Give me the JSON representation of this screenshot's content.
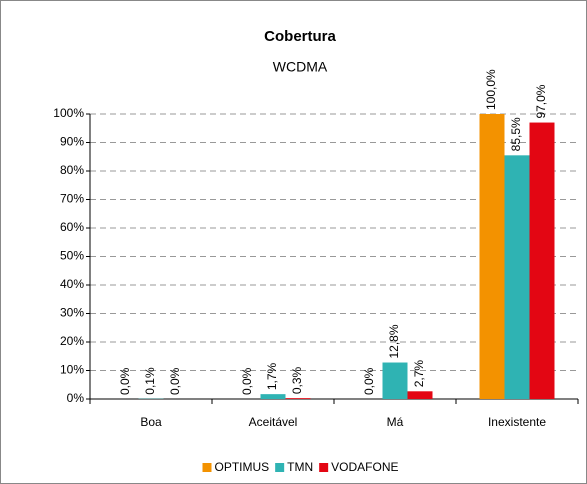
{
  "chart_data": {
    "type": "bar",
    "title": "Cobertura",
    "subtitle": "WCDMA",
    "categories": [
      "Boa",
      "Aceitável",
      "Má",
      "Inexistente"
    ],
    "series": [
      {
        "name": "OPTIMUS",
        "color": "#f39200",
        "values": [
          0,
          0,
          0,
          100
        ],
        "value_labels": [
          "0,0%",
          "0,0%",
          "0,0%",
          "100,0%"
        ]
      },
      {
        "name": "TMN",
        "color": "#2fb3b3",
        "values": [
          0.1,
          1.7,
          12.8,
          85.5
        ],
        "value_labels": [
          "0,1%",
          "1,7%",
          "12,8%",
          "85,5%"
        ]
      },
      {
        "name": "VODAFONE",
        "color": "#e30613",
        "values": [
          0,
          0.3,
          2.7,
          97
        ],
        "value_labels": [
          "0,0%",
          "0,3%",
          "2,7%",
          "97,0%"
        ]
      }
    ],
    "ylim": [
      0,
      100
    ],
    "yticks": [
      {
        "value": 0,
        "label": "0%"
      },
      {
        "value": 10,
        "label": "10%"
      },
      {
        "value": 20,
        "label": "20%"
      },
      {
        "value": 30,
        "label": "30%"
      },
      {
        "value": 40,
        "label": "40%"
      },
      {
        "value": 50,
        "label": "50%"
      },
      {
        "value": 60,
        "label": "60%"
      },
      {
        "value": 70,
        "label": "70%"
      },
      {
        "value": 80,
        "label": "80%"
      },
      {
        "value": 90,
        "label": "90%"
      },
      {
        "value": 100,
        "label": "100%"
      }
    ],
    "grid": true,
    "legend": "bottom"
  }
}
